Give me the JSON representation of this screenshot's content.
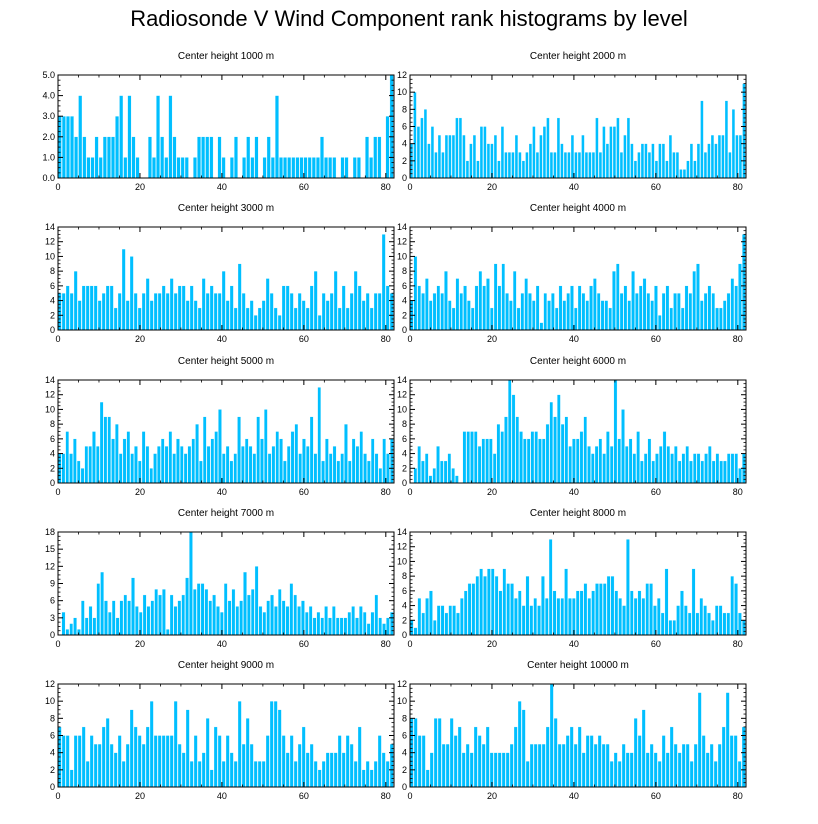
{
  "title": "Radiosonde V Wind Component rank histograms by level",
  "colors": {
    "bar": "#00bfff",
    "frame": "#000000",
    "bar_edge": "#ffffff"
  },
  "chart_data": [
    {
      "type": "bar",
      "title": "Center height 1000 m",
      "xlabel": "",
      "ylabel": "",
      "xlim": [
        0,
        82
      ],
      "ylim": [
        0,
        5.0
      ],
      "yticks": [
        0,
        1,
        2,
        3,
        4,
        5
      ],
      "ytick_labels": [
        "0.0",
        "1.0",
        "2.0",
        "3.0",
        "4.0",
        "5.0"
      ],
      "xticks": [
        0,
        20,
        40,
        60,
        80
      ],
      "values": [
        3,
        3,
        3,
        3,
        2,
        4,
        2,
        1,
        1,
        2,
        1,
        2,
        2,
        2,
        3,
        4,
        1,
        4,
        2,
        1,
        0,
        0,
        2,
        1,
        4,
        2,
        1,
        4,
        2,
        1,
        1,
        1,
        0,
        1,
        2,
        2,
        2,
        2,
        0,
        2,
        1,
        0,
        1,
        2,
        0,
        1,
        2,
        1,
        2,
        0,
        1,
        2,
        1,
        4,
        1,
        1,
        1,
        1,
        1,
        1,
        1,
        1,
        1,
        1,
        2,
        1,
        1,
        1,
        0,
        1,
        1,
        0,
        1,
        1,
        0,
        2,
        1,
        2,
        2,
        0,
        3,
        5
      ]
    },
    {
      "type": "bar",
      "title": "Center height 2000 m",
      "xlabel": "",
      "ylabel": "",
      "xlim": [
        0,
        82
      ],
      "ylim": [
        0,
        12
      ],
      "yticks": [
        0,
        2,
        4,
        6,
        8,
        10,
        12
      ],
      "ytick_labels": [
        "0",
        "2",
        "4",
        "6",
        "8",
        "10",
        "12"
      ],
      "xticks": [
        0,
        20,
        40,
        60,
        80
      ],
      "values": [
        4,
        10,
        6,
        7,
        8,
        4,
        6,
        3,
        5,
        3,
        5,
        5,
        5,
        7,
        7,
        5,
        2,
        4,
        5,
        2,
        6,
        6,
        4,
        4,
        5,
        2,
        6,
        3,
        3,
        3,
        5,
        3,
        2,
        3,
        4,
        6,
        3,
        5,
        6,
        7,
        3,
        3,
        7,
        4,
        3,
        3,
        5,
        3,
        3,
        5,
        3,
        3,
        3,
        7,
        3,
        6,
        4,
        6,
        6,
        7,
        3,
        5,
        7,
        4,
        2,
        3,
        4,
        4,
        3,
        4,
        2,
        4,
        4,
        2,
        5,
        3,
        3,
        1,
        1,
        2,
        4,
        2,
        4,
        9,
        3,
        4,
        5,
        4,
        5,
        5,
        9,
        3,
        8,
        5,
        5,
        11
      ]
    },
    {
      "type": "bar",
      "title": "Center height 3000 m",
      "xlabel": "",
      "ylabel": "",
      "xlim": [
        0,
        82
      ],
      "ylim": [
        0,
        14
      ],
      "yticks": [
        0,
        2,
        4,
        6,
        8,
        10,
        12,
        14
      ],
      "ytick_labels": [
        "0",
        "2",
        "4",
        "6",
        "8",
        "10",
        "12",
        "14"
      ],
      "xticks": [
        0,
        20,
        40,
        60,
        80
      ],
      "values": [
        5,
        5,
        6,
        5,
        8,
        4,
        6,
        6,
        6,
        6,
        4,
        5,
        6,
        6,
        3,
        5,
        11,
        4,
        10,
        5,
        3,
        5,
        7,
        4,
        5,
        5,
        6,
        5,
        7,
        5,
        6,
        6,
        4,
        6,
        4,
        3,
        7,
        5,
        6,
        5,
        5,
        8,
        4,
        6,
        3,
        9,
        5,
        3,
        4,
        2,
        3,
        4,
        7,
        5,
        3,
        2,
        6,
        6,
        5,
        3,
        5,
        4,
        3,
        6,
        8,
        2,
        5,
        4,
        5,
        8,
        3,
        6,
        3,
        5,
        8,
        6,
        4,
        5,
        3,
        5,
        5,
        13,
        6,
        5
      ]
    },
    {
      "type": "bar",
      "title": "Center height 4000 m",
      "xlabel": "",
      "ylabel": "",
      "xlim": [
        0,
        82
      ],
      "ylim": [
        0,
        14
      ],
      "yticks": [
        0,
        2,
        4,
        6,
        8,
        10,
        12,
        14
      ],
      "ytick_labels": [
        "0",
        "2",
        "4",
        "6",
        "8",
        "10",
        "12",
        "14"
      ],
      "xticks": [
        0,
        20,
        40,
        60,
        80
      ],
      "values": [
        4,
        10,
        6,
        5,
        7,
        4,
        5,
        6,
        5,
        8,
        4,
        3,
        7,
        5,
        6,
        4,
        3,
        6,
        8,
        6,
        7,
        3,
        9,
        6,
        9,
        5,
        4,
        8,
        3,
        5,
        7,
        5,
        4,
        6,
        1,
        5,
        4,
        5,
        3,
        6,
        4,
        5,
        6,
        3,
        6,
        5,
        4,
        6,
        7,
        5,
        4,
        4,
        3,
        8,
        9,
        5,
        6,
        4,
        8,
        5,
        6,
        7,
        5,
        4,
        6,
        2,
        5,
        6,
        3,
        5,
        5,
        3,
        6,
        5,
        8,
        9,
        4,
        5,
        6,
        5,
        3,
        3,
        4,
        5,
        7,
        6,
        9,
        13
      ]
    },
    {
      "type": "bar",
      "title": "Center height 5000 m",
      "xlabel": "",
      "ylabel": "",
      "xlim": [
        0,
        82
      ],
      "ylim": [
        0,
        14
      ],
      "yticks": [
        0,
        2,
        4,
        6,
        8,
        10,
        12,
        14
      ],
      "ytick_labels": [
        "0",
        "2",
        "4",
        "6",
        "8",
        "10",
        "12",
        "14"
      ],
      "xticks": [
        0,
        20,
        40,
        60,
        80
      ],
      "values": [
        4,
        4,
        7,
        4,
        6,
        3,
        2,
        5,
        5,
        7,
        5,
        11,
        9,
        9,
        6,
        8,
        4,
        6,
        7,
        4,
        5,
        3,
        7,
        5,
        2,
        4,
        5,
        6,
        5,
        7,
        4,
        6,
        5,
        4,
        5,
        6,
        8,
        3,
        9,
        5,
        6,
        7,
        10,
        4,
        5,
        3,
        4,
        9,
        5,
        6,
        5,
        4,
        9,
        6,
        10,
        4,
        5,
        7,
        6,
        3,
        5,
        7,
        8,
        4,
        6,
        5,
        9,
        4,
        13,
        3,
        6,
        4,
        5,
        3,
        4,
        8,
        3,
        6,
        5,
        7,
        4,
        3,
        6,
        4,
        2,
        6,
        4,
        6
      ]
    },
    {
      "type": "bar",
      "title": "Center height 6000 m",
      "xlabel": "",
      "ylabel": "",
      "xlim": [
        0,
        82
      ],
      "ylim": [
        0,
        14
      ],
      "yticks": [
        0,
        2,
        4,
        6,
        8,
        10,
        12,
        14
      ],
      "ytick_labels": [
        "0",
        "2",
        "4",
        "6",
        "8",
        "10",
        "12",
        "14"
      ],
      "xticks": [
        0,
        20,
        40,
        60,
        80
      ],
      "values": [
        0,
        2,
        5,
        3,
        4,
        1,
        2,
        5,
        3,
        3,
        4,
        2,
        1,
        0,
        7,
        7,
        7,
        7,
        5,
        6,
        6,
        6,
        4,
        8,
        7,
        9,
        14,
        12,
        9,
        7,
        6,
        6,
        7,
        7,
        6,
        6,
        8,
        11,
        9,
        12,
        8,
        9,
        5,
        6,
        6,
        7,
        9,
        5,
        4,
        5,
        6,
        4,
        7,
        5,
        14,
        6,
        10,
        5,
        6,
        4,
        7,
        3,
        4,
        6,
        3,
        4,
        5,
        7,
        5,
        4,
        5,
        3,
        4,
        5,
        3,
        4,
        4,
        3,
        4,
        5,
        3,
        4,
        3,
        3,
        4,
        4,
        4,
        2,
        4
      ]
    },
    {
      "type": "bar",
      "title": "Center height 7000 m",
      "xlabel": "",
      "ylabel": "",
      "xlim": [
        0,
        82
      ],
      "ylim": [
        0,
        18
      ],
      "yticks": [
        0,
        3,
        6,
        9,
        12,
        15,
        18
      ],
      "ytick_labels": [
        "0",
        "3",
        "6",
        "9",
        "12",
        "15",
        "18"
      ],
      "xticks": [
        0,
        20,
        40,
        60,
        80
      ],
      "values": [
        0,
        4,
        1,
        2,
        3,
        1,
        6,
        3,
        5,
        3,
        9,
        11,
        6,
        4,
        6,
        3,
        6,
        7,
        6,
        10,
        5,
        4,
        7,
        5,
        6,
        8,
        7,
        8,
        1,
        7,
        5,
        6,
        7,
        10,
        18,
        8,
        9,
        9,
        8,
        6,
        7,
        5,
        4,
        9,
        6,
        8,
        5,
        6,
        11,
        7,
        8,
        12,
        5,
        4,
        6,
        7,
        5,
        8,
        6,
        5,
        9,
        7,
        5,
        6,
        4,
        5,
        3,
        4,
        3,
        5,
        3,
        5,
        3,
        3,
        3,
        4,
        5,
        3,
        5,
        4,
        2,
        4,
        7,
        3,
        2,
        3,
        4
      ]
    },
    {
      "type": "bar",
      "title": "Center height 8000 m",
      "xlabel": "",
      "ylabel": "",
      "xlim": [
        0,
        82
      ],
      "ylim": [
        0,
        14
      ],
      "yticks": [
        0,
        2,
        4,
        6,
        8,
        10,
        12,
        14
      ],
      "ytick_labels": [
        "0",
        "2",
        "4",
        "6",
        "8",
        "10",
        "12",
        "14"
      ],
      "xticks": [
        0,
        20,
        40,
        60,
        80
      ],
      "values": [
        2,
        1,
        5,
        3,
        5,
        6,
        2,
        4,
        4,
        3,
        4,
        4,
        3,
        5,
        6,
        7,
        7,
        8,
        9,
        8,
        9,
        9,
        8,
        6,
        9,
        7,
        7,
        5,
        6,
        4,
        8,
        4,
        5,
        4,
        8,
        5,
        13,
        6,
        5,
        5,
        9,
        5,
        5,
        6,
        6,
        7,
        5,
        6,
        7,
        7,
        7,
        8,
        8,
        6,
        5,
        4,
        13,
        6,
        5,
        6,
        5,
        7,
        7,
        4,
        5,
        3,
        9,
        2,
        2,
        4,
        6,
        4,
        3,
        9,
        3,
        5,
        4,
        3,
        2,
        4,
        4,
        3,
        3,
        8,
        7,
        3,
        2
      ]
    },
    {
      "type": "bar",
      "title": "Center height 9000 m",
      "xlabel": "",
      "ylabel": "",
      "xlim": [
        0,
        82
      ],
      "ylim": [
        0,
        12
      ],
      "yticks": [
        0,
        2,
        4,
        6,
        8,
        10,
        12
      ],
      "ytick_labels": [
        "0",
        "2",
        "4",
        "6",
        "8",
        "10",
        "12"
      ],
      "xticks": [
        0,
        20,
        40,
        60,
        80
      ],
      "values": [
        7,
        6,
        6,
        2,
        6,
        6,
        7,
        3,
        6,
        5,
        5,
        7,
        8,
        5,
        4,
        6,
        3,
        5,
        9,
        7,
        6,
        5,
        7,
        10,
        6,
        6,
        6,
        6,
        6,
        10,
        5,
        4,
        9,
        3,
        6,
        3,
        4,
        8,
        2,
        7,
        6,
        3,
        6,
        4,
        3,
        10,
        5,
        8,
        5,
        3,
        3,
        3,
        6,
        10,
        10,
        9,
        6,
        4,
        6,
        3,
        5,
        7,
        4,
        5,
        3,
        2,
        3,
        4,
        4,
        4,
        6,
        4,
        6,
        5,
        3,
        7,
        2,
        3,
        2,
        3,
        6,
        4,
        3,
        5
      ]
    },
    {
      "type": "bar",
      "title": "Center height 10000 m",
      "xlabel": "",
      "ylabel": "",
      "xlim": [
        0,
        82
      ],
      "ylim": [
        0,
        12
      ],
      "yticks": [
        0,
        2,
        4,
        6,
        8,
        10,
        12
      ],
      "ytick_labels": [
        "0",
        "2",
        "4",
        "6",
        "8",
        "10",
        "12"
      ],
      "xticks": [
        0,
        20,
        40,
        60,
        80
      ],
      "values": [
        8,
        8,
        6,
        6,
        2,
        4,
        8,
        8,
        5,
        5,
        8,
        6,
        7,
        4,
        5,
        4,
        7,
        6,
        5,
        7,
        4,
        4,
        4,
        4,
        4,
        5,
        7,
        10,
        9,
        3,
        5,
        5,
        5,
        5,
        7,
        12,
        8,
        5,
        5,
        6,
        7,
        5,
        7,
        4,
        6,
        6,
        5,
        6,
        5,
        5,
        3,
        4,
        3,
        5,
        4,
        4,
        8,
        6,
        9,
        4,
        5,
        4,
        3,
        6,
        4,
        7,
        5,
        4,
        5,
        5,
        3,
        5,
        11,
        6,
        4,
        5,
        3,
        5,
        7,
        11,
        6,
        6,
        3,
        7
      ]
    }
  ]
}
